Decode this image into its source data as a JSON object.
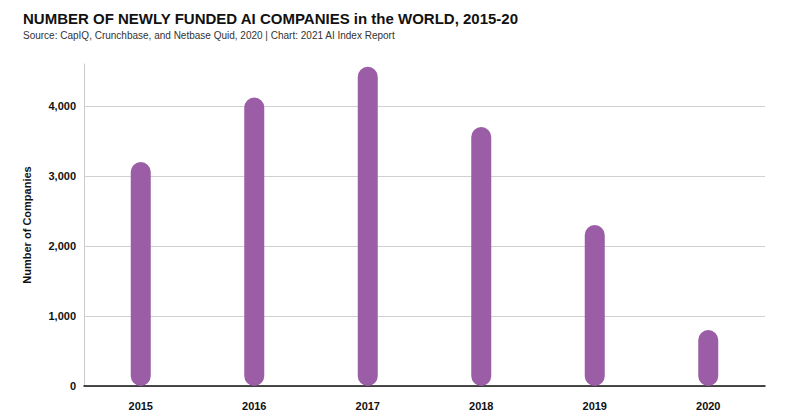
{
  "chart_data": {
    "type": "bar",
    "title": "NUMBER OF NEWLY FUNDED AI COMPANIES in the WORLD, 2015-20",
    "subtitle": "Source: CapIQ, Crunchbase, and Netbase Quid, 2020 | Chart: 2021 AI Index Report",
    "y_label": "Number of Companies",
    "categories": [
      "2015",
      "2016",
      "2017",
      "2018",
      "2019",
      "2020"
    ],
    "values": [
      3200,
      4120,
      4560,
      3700,
      2300,
      800
    ],
    "color": "#9b5ea6",
    "ylim": [
      0,
      4600
    ],
    "yticks": [
      0,
      {
        "value": 1000,
        "label": "1,000"
      },
      {
        "value": 2000,
        "label": "2,000"
      },
      {
        "value": 3000,
        "label": "3,000"
      },
      {
        "value": 4000,
        "label": "4,000"
      }
    ],
    "grid": true
  }
}
